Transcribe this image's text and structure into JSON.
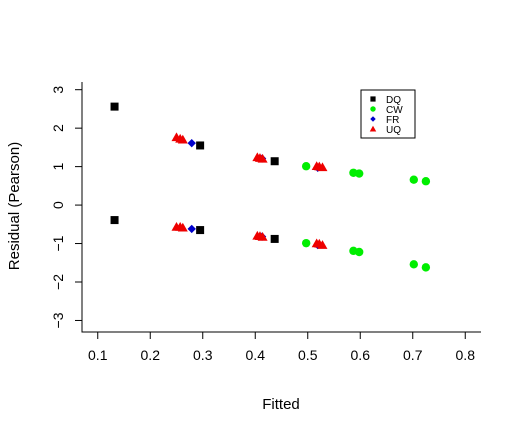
{
  "chart_data": {
    "type": "scatter",
    "xlabel": "Fitted",
    "ylabel": "Residual (Pearson)",
    "xlim": [
      0.07,
      0.83
    ],
    "ylim": [
      -3.3,
      3.2
    ],
    "x_ticks": [
      0.1,
      0.2,
      0.3,
      0.4,
      0.5,
      0.6,
      0.7,
      0.8
    ],
    "y_ticks": [
      -3,
      -2,
      -1,
      0,
      1,
      2,
      3
    ],
    "grid": false,
    "legend_position": "top-right",
    "series": [
      {
        "name": "DQ",
        "marker": "square",
        "color": "#000000",
        "points": [
          {
            "x": 0.132,
            "y": 2.56
          },
          {
            "x": 0.132,
            "y": -0.39
          },
          {
            "x": 0.295,
            "y": 1.55
          },
          {
            "x": 0.295,
            "y": -0.65
          },
          {
            "x": 0.437,
            "y": 1.14
          },
          {
            "x": 0.437,
            "y": -0.88
          }
        ]
      },
      {
        "name": "CW",
        "marker": "circle",
        "color": "#00ee00",
        "points": [
          {
            "x": 0.497,
            "y": 1.01
          },
          {
            "x": 0.497,
            "y": -0.99
          },
          {
            "x": 0.587,
            "y": 0.84
          },
          {
            "x": 0.587,
            "y": -1.19
          },
          {
            "x": 0.598,
            "y": 0.82
          },
          {
            "x": 0.598,
            "y": -1.22
          },
          {
            "x": 0.702,
            "y": 0.66
          },
          {
            "x": 0.702,
            "y": -1.54
          },
          {
            "x": 0.725,
            "y": 0.62
          },
          {
            "x": 0.725,
            "y": -1.62
          }
        ]
      },
      {
        "name": "FR",
        "marker": "diamond",
        "color": "#0000cc",
        "points": [
          {
            "x": 0.279,
            "y": 1.61
          },
          {
            "x": 0.279,
            "y": -0.62
          },
          {
            "x": 0.413,
            "y": 1.21
          },
          {
            "x": 0.413,
            "y": -0.82
          },
          {
            "x": 0.519,
            "y": 0.97
          },
          {
            "x": 0.519,
            "y": -1.04
          }
        ]
      },
      {
        "name": "UQ",
        "marker": "triangle",
        "color": "#ee0000",
        "points": [
          {
            "x": 0.25,
            "y": 1.76
          },
          {
            "x": 0.25,
            "y": -0.57
          },
          {
            "x": 0.257,
            "y": 1.72
          },
          {
            "x": 0.257,
            "y": -0.57
          },
          {
            "x": 0.262,
            "y": 1.7
          },
          {
            "x": 0.262,
            "y": -0.59
          },
          {
            "x": 0.404,
            "y": 1.24
          },
          {
            "x": 0.404,
            "y": -0.8
          },
          {
            "x": 0.409,
            "y": 1.22
          },
          {
            "x": 0.409,
            "y": -0.81
          },
          {
            "x": 0.414,
            "y": 1.2
          },
          {
            "x": 0.414,
            "y": -0.83
          },
          {
            "x": 0.517,
            "y": 1.01
          },
          {
            "x": 0.517,
            "y": -1.0
          },
          {
            "x": 0.522,
            "y": 1.0
          },
          {
            "x": 0.522,
            "y": -1.01
          },
          {
            "x": 0.528,
            "y": 0.98
          },
          {
            "x": 0.528,
            "y": -1.04
          }
        ]
      }
    ]
  }
}
